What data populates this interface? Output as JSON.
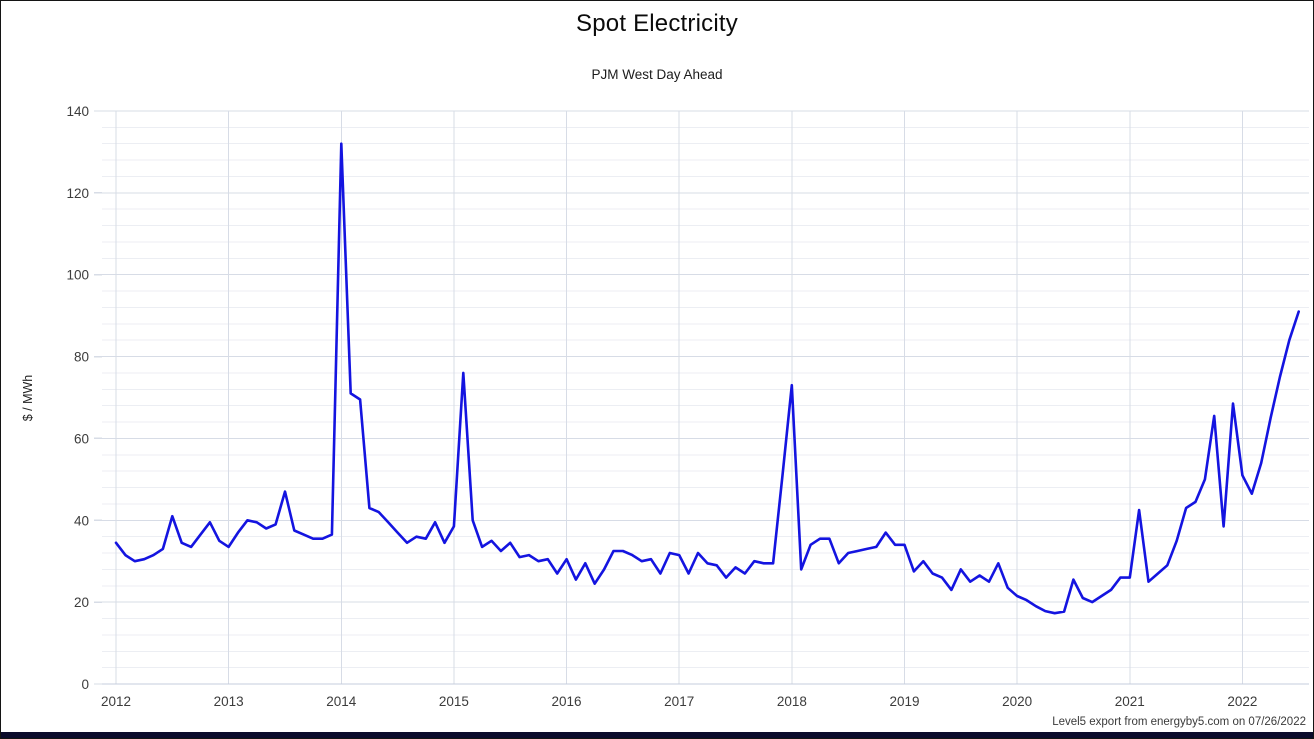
{
  "header": {
    "title": "Spot Electricity",
    "subtitle": "PJM West Day Ahead"
  },
  "footer": {
    "note": "Level5 export from energyby5.com on 07/26/2022"
  },
  "colors": {
    "series_line": "#1414e0",
    "grid_minor": "#eceef3",
    "grid_major": "#d7dce6",
    "zero_line": "#c4cddc",
    "bottom_bar": "#0b0b2b",
    "tick_text": "#3c3c3c"
  },
  "chart_data": {
    "type": "line",
    "title": "Spot Electricity",
    "subtitle": "PJM West Day Ahead",
    "xlabel": "",
    "ylabel": "$ / MWh",
    "ylim": [
      0,
      140
    ],
    "y_major_ticks": [
      0,
      20,
      40,
      60,
      80,
      100,
      120,
      140
    ],
    "y_minor_step": 4,
    "x_year_ticks": [
      "2012",
      "2013",
      "2014",
      "2015",
      "2016",
      "2017",
      "2018",
      "2019",
      "2020",
      "2021",
      "2022"
    ],
    "grid": true,
    "legend_position": "none",
    "series": [
      {
        "name": "PJM West Day Ahead",
        "start_month": "2012-01",
        "end_month": "2022-07",
        "frequency": "monthly",
        "units": "$/MWh",
        "values": [
          34.5,
          31.5,
          30,
          30.5,
          31.5,
          33,
          41,
          34.5,
          33.5,
          36.5,
          39.5,
          35,
          33.5,
          37,
          40,
          39.5,
          38,
          39,
          47,
          37.5,
          36.5,
          35.5,
          35.5,
          36.5,
          132,
          71,
          69.5,
          43,
          42,
          39.5,
          37,
          34.5,
          36,
          35.5,
          39.5,
          34.5,
          38.5,
          76,
          40,
          33.5,
          35,
          32.5,
          34.5,
          31,
          31.5,
          30,
          30.5,
          27,
          30.5,
          25.5,
          29.5,
          24.5,
          28,
          32.5,
          32.5,
          31.5,
          30,
          30.5,
          27,
          32,
          31.5,
          27,
          32,
          29.5,
          29,
          26,
          28.5,
          27,
          30,
          29.5,
          29.5,
          51,
          73,
          28,
          34,
          35.5,
          35.5,
          29.5,
          32,
          32.5,
          33,
          33.5,
          37,
          34,
          34,
          27.5,
          30,
          27,
          26,
          23,
          28,
          25,
          26.5,
          25,
          29.5,
          23.5,
          21.5,
          20.5,
          19,
          17.8,
          17.3,
          17.7,
          25.5,
          21,
          20,
          21.5,
          23,
          26,
          26,
          42.5,
          25,
          27,
          29,
          35,
          43,
          44.5,
          50,
          65.5,
          38.5,
          68.5,
          51,
          46.5,
          54,
          65,
          75,
          84,
          91
        ]
      }
    ]
  }
}
